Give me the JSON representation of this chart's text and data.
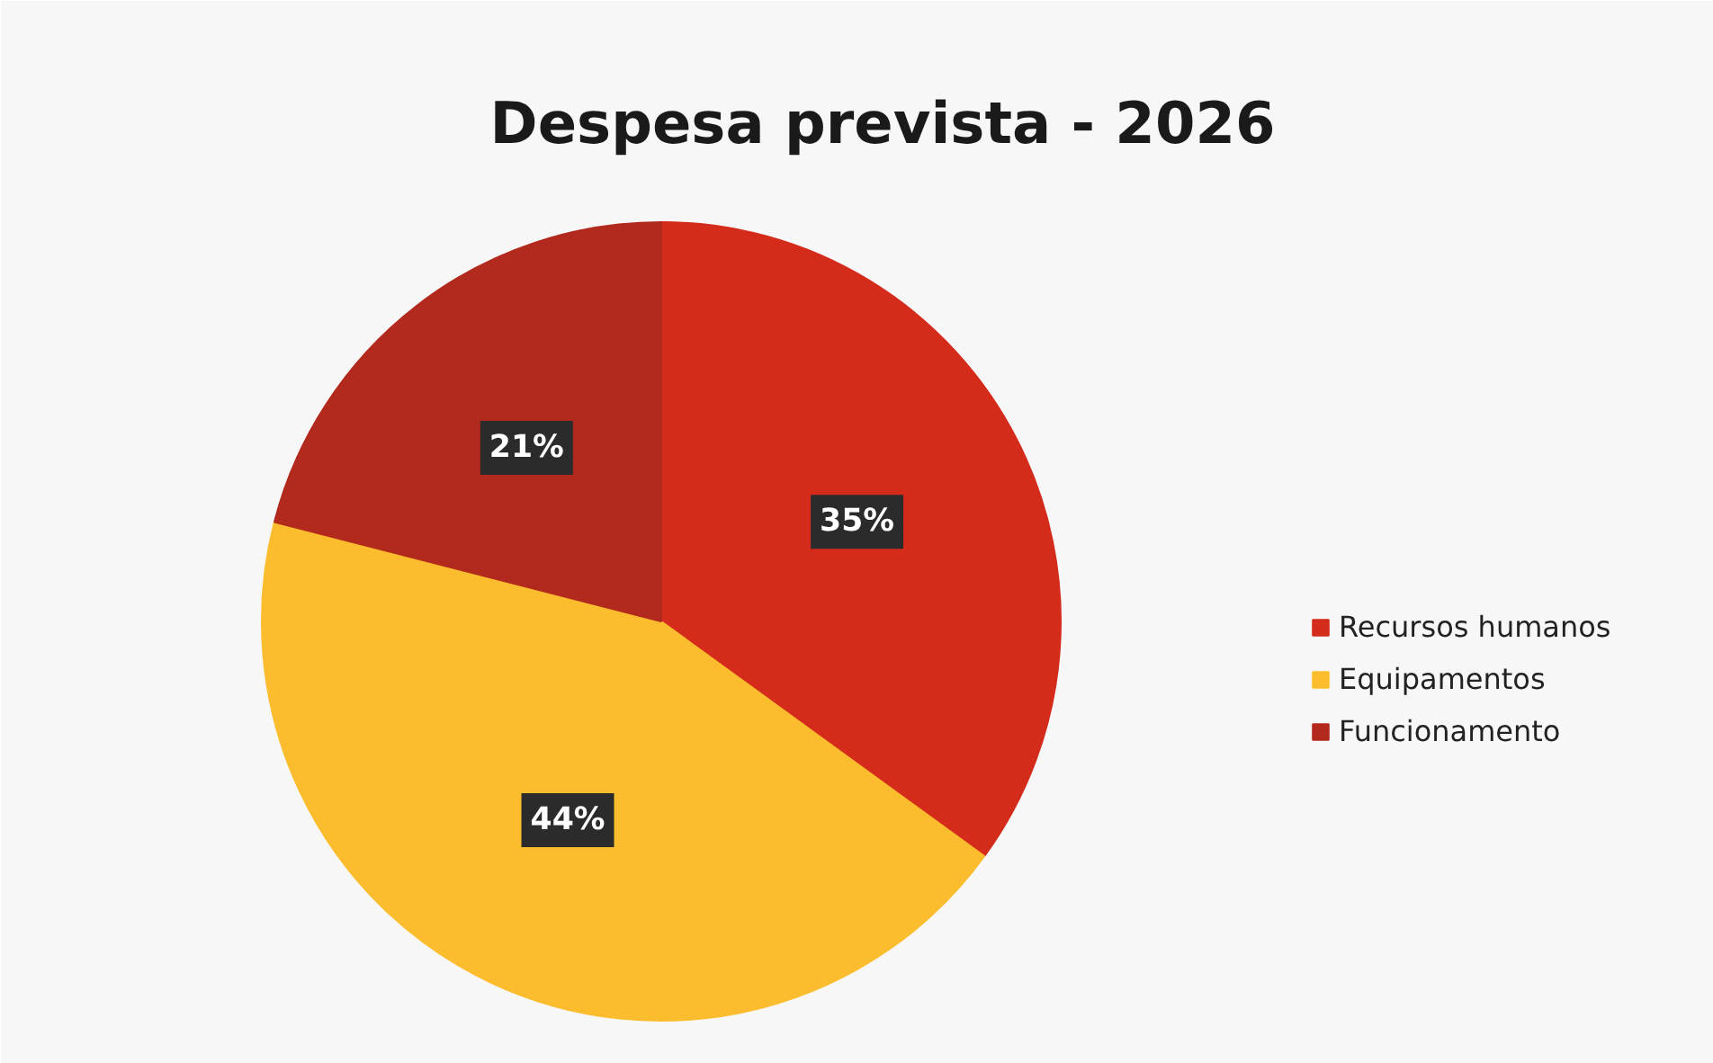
{
  "chart_data": {
    "type": "pie",
    "title": "Despesa prevista - 2026",
    "categories": [
      "Recursos humanos",
      "Equipamentos",
      "Funcionamento"
    ],
    "values": [
      35,
      44,
      21
    ],
    "colors": [
      "#d42b1b",
      "#fbbd2e",
      "#b22a1d"
    ],
    "value_labels": [
      "35%",
      "44%",
      "21%"
    ],
    "legend": "right"
  }
}
